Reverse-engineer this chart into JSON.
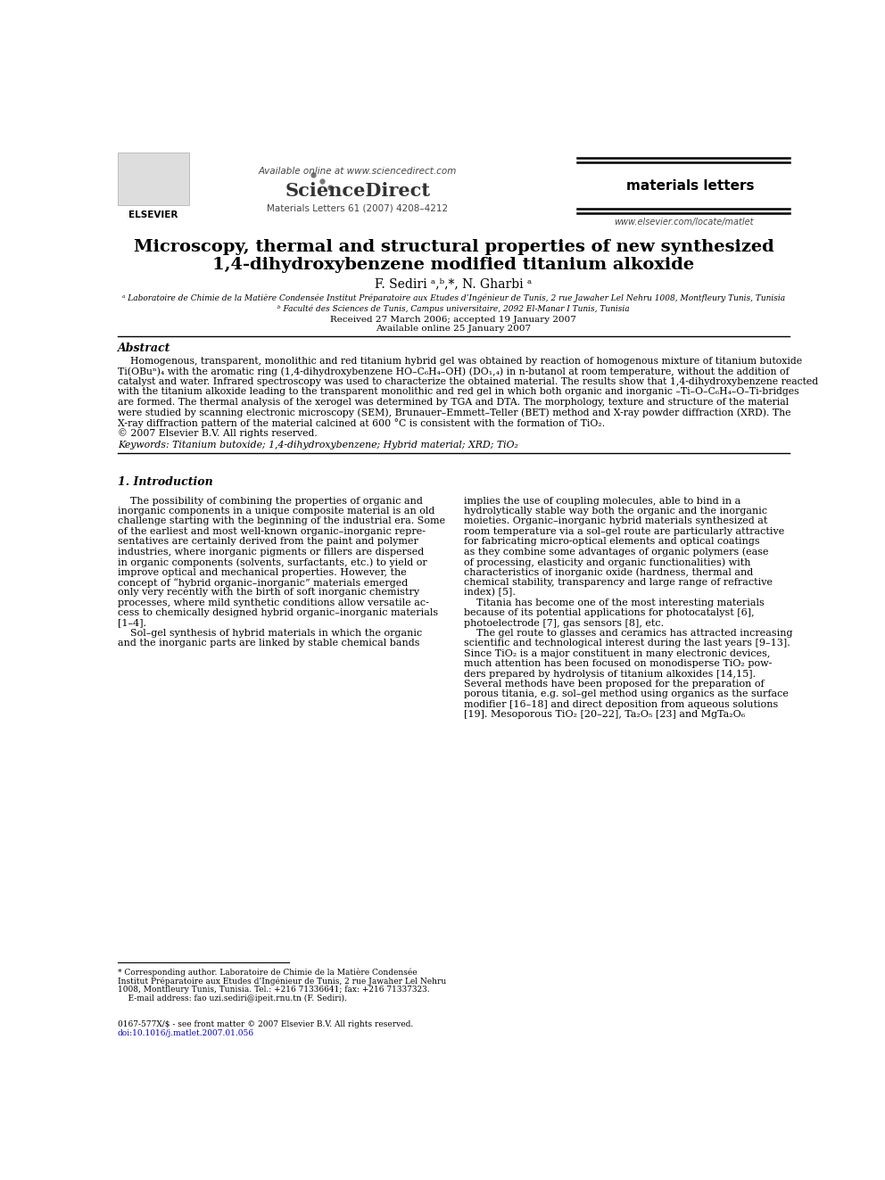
{
  "background_color": "#ffffff",
  "page_width": 9.92,
  "page_height": 13.23,
  "header": {
    "available_online": "Available online at www.sciencedirect.com",
    "journal_info": "Materials Letters 61 (2007) 4208–4212",
    "journal_name": "materials letters",
    "website": "www.elsevier.com/locate/matlet"
  },
  "title_line1": "Microscopy, thermal and structural properties of new synthesized",
  "title_line2": "1,4-dihydroxybenzene modified titanium alkoxide",
  "authors": "F. Sediri ᵃ,ᵇ,*, N. Gharbi ᵃ",
  "affiliation_a": "ᵃ Laboratoire de Chimie de la Matière Condensée Institut Préparatoire aux Etudes d’Ingénieur de Tunis, 2 rue Jawaher Lel Nehru 1008, Montfleury Tunis, Tunisia",
  "affiliation_b": "ᵇ Faculté des Sciences de Tunis, Campus universitaire, 2092 El-Manar I Tunis, Tunisia",
  "received": "Received 27 March 2006; accepted 19 January 2007",
  "available": "Available online 25 January 2007",
  "abstract_title": "Abstract",
  "abstract_lines": [
    "    Homogenous, transparent, monolithic and red titanium hybrid gel was obtained by reaction of homogenous mixture of titanium butoxide",
    "Ti(OBuⁿ)₄ with the aromatic ring (1,4-dihydroxybenzene HO–C₆H₄–OH) (DO₁,₄) in n-butanol at room temperature, without the addition of",
    "catalyst and water. Infrared spectroscopy was used to characterize the obtained material. The results show that 1,4-dihydroxybenzene reacted",
    "with the titanium alkoxide leading to the transparent monolithic and red gel in which both organic and inorganic –Ti–O–C₆H₄–O–Ti-bridges",
    "are formed. The thermal analysis of the xerogel was determined by TGA and DTA. The morphology, texture and structure of the material",
    "were studied by scanning electronic microscopy (SEM), Brunauer–Emmett–Teller (BET) method and X-ray powder diffraction (XRD). The",
    "X-ray diffraction pattern of the material calcined at 600 °C is consistent with the formation of TiO₂.",
    "© 2007 Elsevier B.V. All rights reserved."
  ],
  "keywords": "Keywords: Titanium butoxide; 1,4-dihydroxybenzene; Hybrid material; XRD; TiO₂",
  "section1_title": "1. Introduction",
  "col1_lines": [
    "    The possibility of combining the properties of organic and",
    "inorganic components in a unique composite material is an old",
    "challenge starting with the beginning of the industrial era. Some",
    "of the earliest and most well-known organic–inorganic repre-",
    "sentatives are certainly derived from the paint and polymer",
    "industries, where inorganic pigments or fillers are dispersed",
    "in organic components (solvents, surfactants, etc.) to yield or",
    "improve optical and mechanical properties. However, the",
    "concept of “hybrid organic–inorganic” materials emerged",
    "only very recently with the birth of soft inorganic chemistry",
    "processes, where mild synthetic conditions allow versatile ac-",
    "cess to chemically designed hybrid organic–inorganic materials",
    "[1–4].",
    "    Sol–gel synthesis of hybrid materials in which the organic",
    "and the inorganic parts are linked by stable chemical bands"
  ],
  "col2_lines": [
    "implies the use of coupling molecules, able to bind in a",
    "hydrolytically stable way both the organic and the inorganic",
    "moieties. Organic–inorganic hybrid materials synthesized at",
    "room temperature via a sol–gel route are particularly attractive",
    "for fabricating micro-optical elements and optical coatings",
    "as they combine some advantages of organic polymers (ease",
    "of processing, elasticity and organic functionalities) with",
    "characteristics of inorganic oxide (hardness, thermal and",
    "chemical stability, transparency and large range of refractive",
    "index) [5].",
    "    Titania has become one of the most interesting materials",
    "because of its potential applications for photocatalyst [6],",
    "photoelectrode [7], gas sensors [8], etc.",
    "    The gel route to glasses and ceramics has attracted increasing",
    "scientific and technological interest during the last years [9–13].",
    "Since TiO₂ is a major constituent in many electronic devices,",
    "much attention has been focused on monodisperse TiO₂ pow-",
    "ders prepared by hydrolysis of titanium alkoxides [14,15].",
    "Several methods have been proposed for the preparation of",
    "porous titania, e.g. sol–gel method using organics as the surface",
    "modifier [16–18] and direct deposition from aqueous solutions",
    "[19]. Mesoporous TiO₂ [20–22], Ta₂O₅ [23] and MgTa₂O₆"
  ],
  "footnote_lines": [
    "* Corresponding author. Laboratoire de Chimie de la Matière Condensée",
    "Institut Préparatoire aux Etudes d’Ingénieur de Tunis, 2 rue Jawaher Lel Nehru",
    "1008, Montfleury Tunis, Tunisia. Tel.: +216 71336641; fax: +216 71337323.",
    "    E-mail address: fao uzi.sediri@ipeit.rnu.tn (F. Sediri)."
  ],
  "footer_line1": "0167-577X/$ - see front matter © 2007 Elsevier B.V. All rights reserved.",
  "footer_line2": "doi:10.1016/j.matlet.2007.01.056",
  "link_color": "#0000cc",
  "text_color": "#000000"
}
